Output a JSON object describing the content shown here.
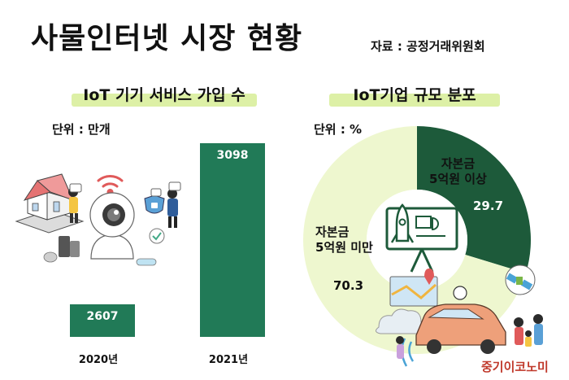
{
  "page": {
    "title": "사물인터넷 시장 현황",
    "source": "자료 : 공정거래위원회",
    "brand": "중기이코노미"
  },
  "colors": {
    "bar": "#217a57",
    "donut_dark": "#1d5a3a",
    "donut_light": "#eef7cf",
    "subtitle_highlight": "#ddf0a6",
    "donut_inner": "#ffffff"
  },
  "chart_data": [
    {
      "type": "bar",
      "title": "IoT 기기 서비스 가입 수",
      "unit": "단위 : 만개",
      "categories": [
        "2020년",
        "2021년"
      ],
      "values": [
        2607,
        3098
      ],
      "value_labels": [
        "2607",
        "3098"
      ]
    },
    {
      "type": "pie",
      "style": "donut",
      "title": "IoT기업 규모 분포",
      "unit": "단위 : %",
      "slices": [
        {
          "label": "자본금 5억원 이상",
          "label_lines": [
            "자본금",
            "5억원 이상"
          ],
          "value": 29.7,
          "value_label": "29.7",
          "color": "#1d5a3a"
        },
        {
          "label": "자본금 5억원 미만",
          "label_lines": [
            "자본금",
            "5억원 미만"
          ],
          "value": 70.3,
          "value_label": "70.3",
          "color": "#eef7cf"
        }
      ]
    }
  ]
}
